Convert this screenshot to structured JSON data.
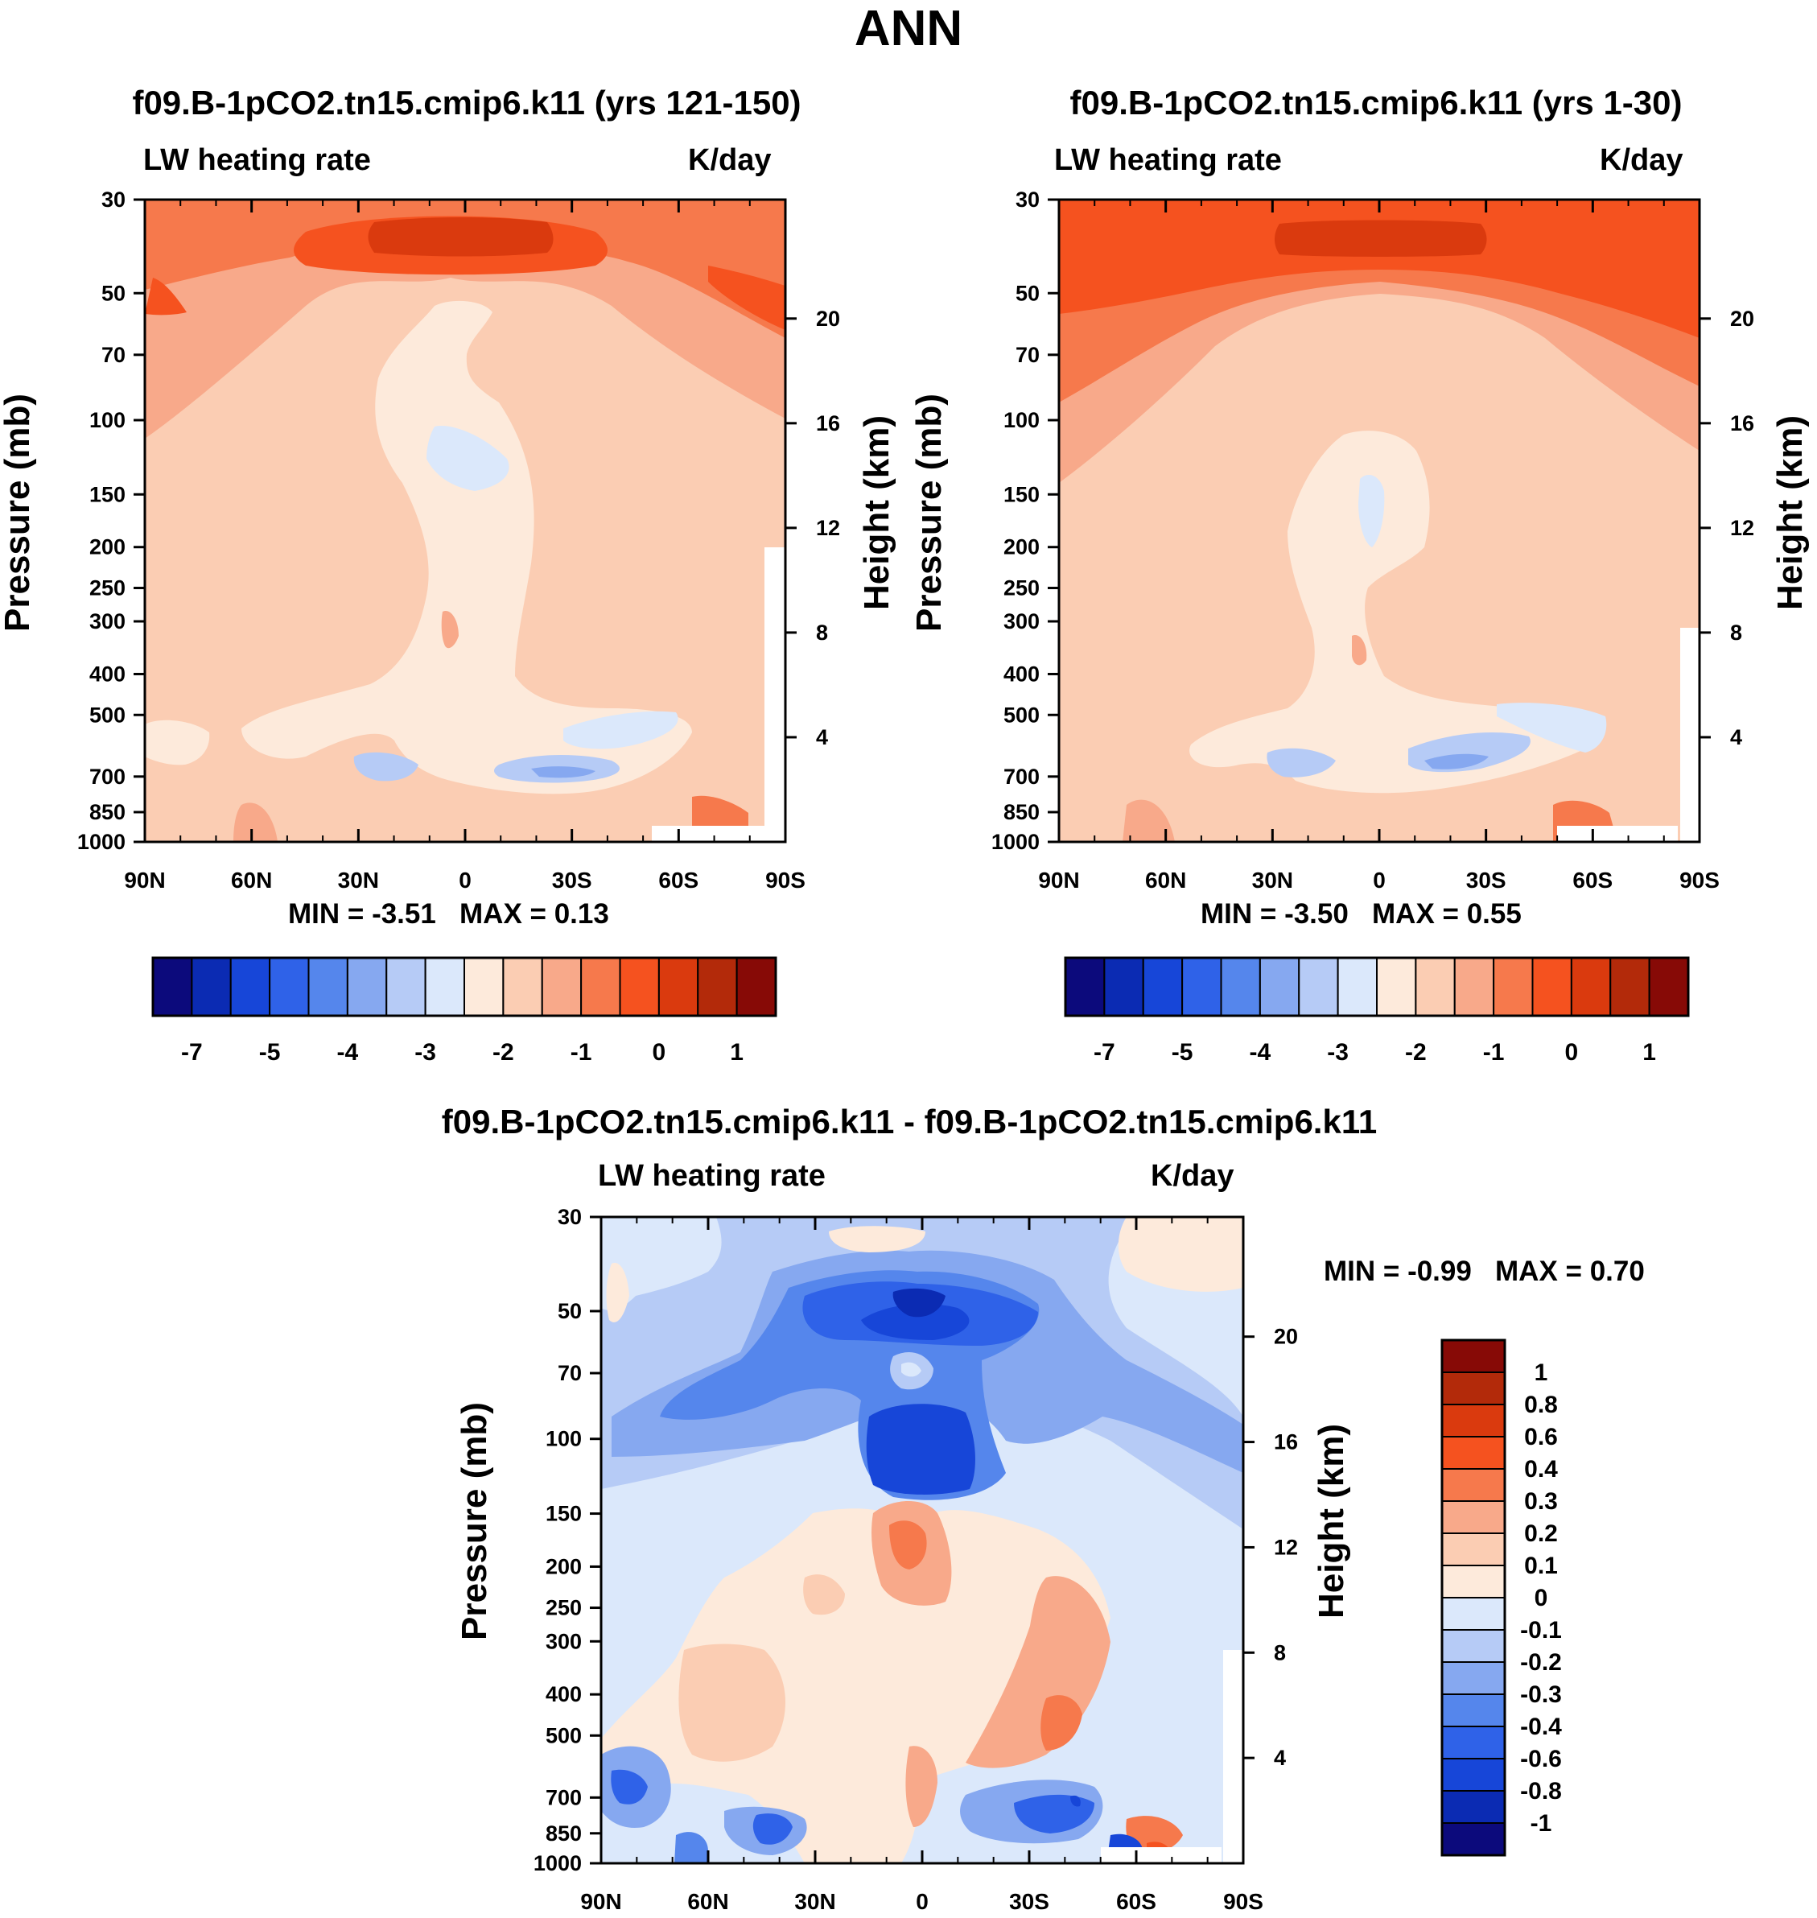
{
  "figure_title": "ANN",
  "colors": {
    "abs_palette": [
      "#0c0a7c",
      "#0b2bb3",
      "#1746d8",
      "#2f62e8",
      "#5586ec",
      "#86a8f0",
      "#b6cbf6",
      "#dbe8fb",
      "#fdeadb",
      "#fbcdb3",
      "#f8a98a",
      "#f6794c",
      "#f5521f",
      "#da3a0e",
      "#b32a0a",
      "#870a06"
    ],
    "diff_palette": [
      "#0c0a7c",
      "#0b2bb3",
      "#1746d8",
      "#2f62e8",
      "#5586ec",
      "#86a8f0",
      "#b6cbf6",
      "#dbe8fb",
      "#fdeadb",
      "#fbcdb3",
      "#f8a98a",
      "#f6794c",
      "#f5521f",
      "#da3a0e",
      "#b32a0a",
      "#870a06"
    ]
  },
  "chart_data": [
    {
      "type": "heatmap",
      "title": "f09.B-1pCO2.tn15.cmip6.k11 (yrs 121-150)",
      "left_label": "LW heating rate",
      "right_label": "K/day",
      "xlabel": "",
      "ylabel": "Pressure (mb)",
      "ylabel_right": "Height (km)",
      "x_ticks": [
        "90N",
        "60N",
        "30N",
        "0",
        "30S",
        "60S",
        "90S"
      ],
      "y_ticks": [
        "30",
        "50",
        "70",
        "100",
        "150",
        "200",
        "250",
        "300",
        "400",
        "500",
        "700",
        "850",
        "1000"
      ],
      "height_ticks": [
        "20",
        "16",
        "12",
        "8",
        "4"
      ],
      "min_label": "MIN =",
      "min_value": "-3.51",
      "max_label": "MAX =",
      "max_value": "0.13",
      "colorbar_labels": [
        "-7",
        "-5",
        "-4",
        "-3",
        "-2",
        "-1",
        "0",
        "1"
      ]
    },
    {
      "type": "heatmap",
      "title": "f09.B-1pCO2.tn15.cmip6.k11 (yrs 1-30)",
      "left_label": "LW heating rate",
      "right_label": "K/day",
      "xlabel": "",
      "ylabel": "Pressure (mb)",
      "ylabel_right": "Height (km)",
      "x_ticks": [
        "90N",
        "60N",
        "30N",
        "0",
        "30S",
        "60S",
        "90S"
      ],
      "y_ticks": [
        "30",
        "50",
        "70",
        "100",
        "150",
        "200",
        "250",
        "300",
        "400",
        "500",
        "700",
        "850",
        "1000"
      ],
      "height_ticks": [
        "20",
        "16",
        "12",
        "8",
        "4"
      ],
      "min_label": "MIN =",
      "min_value": "-3.50",
      "max_label": "MAX =",
      "max_value": "0.55",
      "colorbar_labels": [
        "-7",
        "-5",
        "-4",
        "-3",
        "-2",
        "-1",
        "0",
        "1"
      ]
    },
    {
      "type": "heatmap",
      "title": "f09.B-1pCO2.tn15.cmip6.k11 - f09.B-1pCO2.tn15.cmip6.k11",
      "left_label": "LW heating rate",
      "right_label": "K/day",
      "xlabel": "",
      "ylabel": "Pressure (mb)",
      "ylabel_right": "Height (km)",
      "x_ticks": [
        "90N",
        "60N",
        "30N",
        "0",
        "30S",
        "60S",
        "90S"
      ],
      "y_ticks": [
        "30",
        "50",
        "70",
        "100",
        "150",
        "200",
        "250",
        "300",
        "400",
        "500",
        "700",
        "850",
        "1000"
      ],
      "height_ticks": [
        "20",
        "16",
        "12",
        "8",
        "4"
      ],
      "min_label": "MIN =",
      "min_value": "-0.99",
      "max_label": "MAX =",
      "max_value": "0.70",
      "colorbar_labels": [
        "1",
        "0.8",
        "0.6",
        "0.4",
        "0.3",
        "0.2",
        "0.1",
        "0",
        "-0.1",
        "-0.2",
        "-0.3",
        "-0.4",
        "-0.6",
        "-0.8",
        "-1"
      ]
    }
  ]
}
